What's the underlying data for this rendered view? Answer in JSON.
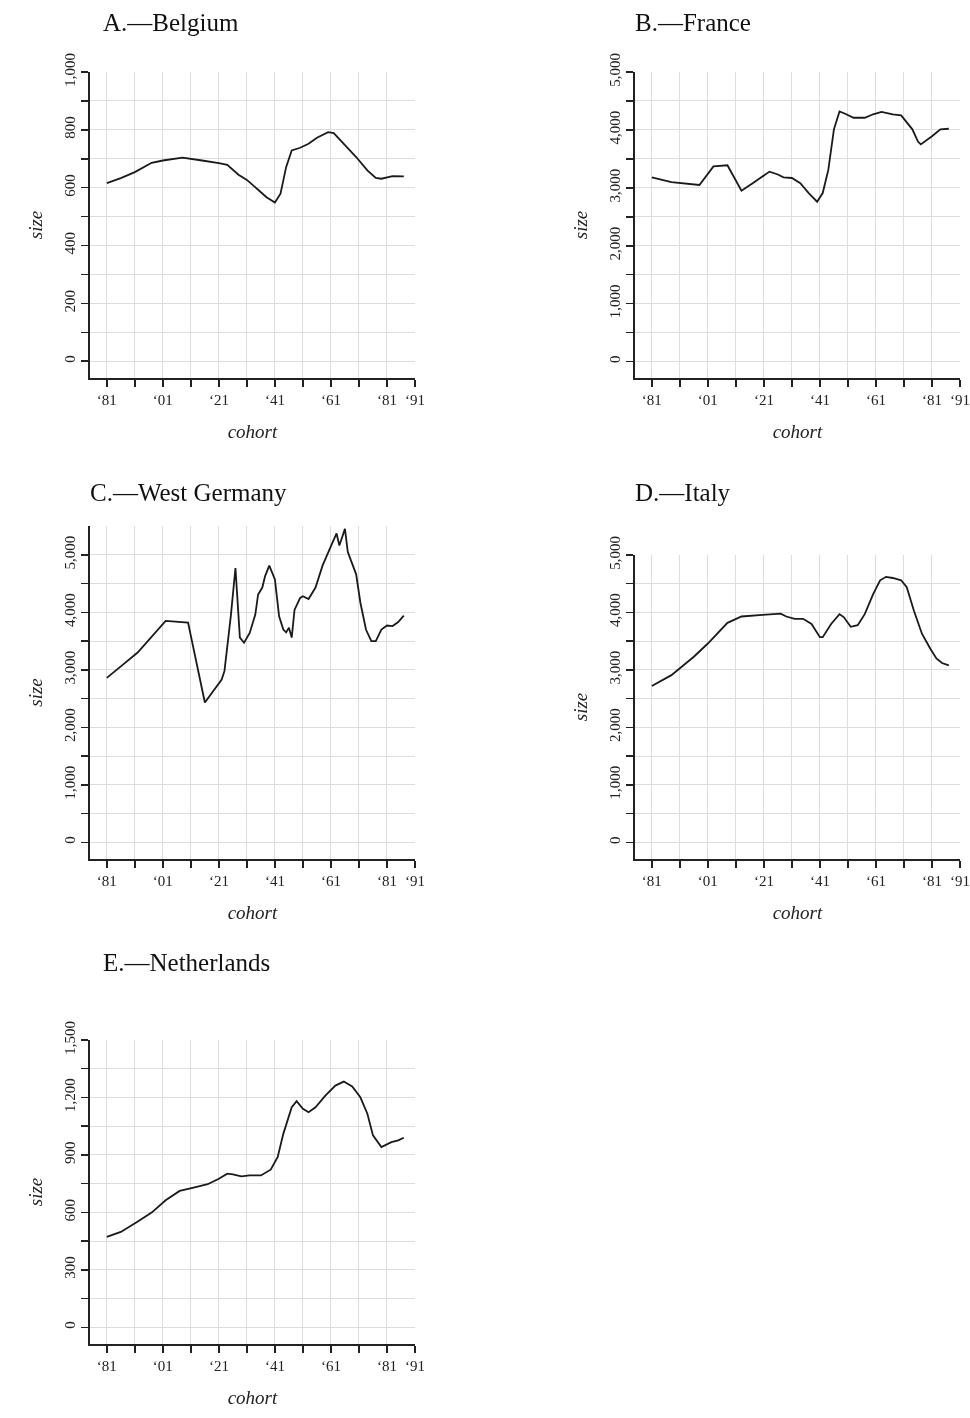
{
  "chart_data": [
    {
      "type": "line",
      "title": "A.—Belgium",
      "xlabel": "cohort",
      "ylabel": "size",
      "color": "#1a1a1a",
      "grid": true,
      "x": [
        "1881",
        "1886",
        "1891",
        "1897",
        "1901",
        "1908",
        "1915",
        "1921",
        "1924",
        "1928",
        "1931",
        "1935",
        "1938",
        "1941",
        "1943",
        "1945",
        "1947",
        "1950",
        "1953",
        "1956",
        "1960",
        "1962",
        "1966",
        "1970",
        "1974",
        "1977",
        "1979",
        "1983",
        "1987"
      ],
      "values": [
        616,
        633,
        654,
        686,
        694,
        704,
        694,
        685,
        679,
        645,
        627,
        593,
        567,
        549,
        579,
        671,
        729,
        738,
        752,
        773,
        792,
        789,
        747,
        706,
        660,
        634,
        631,
        640,
        639
      ],
      "xlim": [
        "1875",
        "1991"
      ],
      "ylim": [
        -58,
        1000
      ],
      "xticks": [
        {
          "value": "1881",
          "label": "‘81"
        },
        {
          "value": "1891",
          "label": null
        },
        {
          "value": "1901",
          "label": "‘01"
        },
        {
          "value": "1911",
          "label": null
        },
        {
          "value": "1921",
          "label": "‘21"
        },
        {
          "value": "1931",
          "label": null
        },
        {
          "value": "1941",
          "label": "‘41"
        },
        {
          "value": "1951",
          "label": null
        },
        {
          "value": "1961",
          "label": "‘61"
        },
        {
          "value": "1971",
          "label": null
        },
        {
          "value": "1981",
          "label": "‘81"
        },
        {
          "value": "1991",
          "label": "‘91"
        }
      ],
      "yticks": [
        0,
        {
          "value": 100,
          "label": null
        },
        200,
        {
          "value": 300,
          "label": null
        },
        400,
        {
          "value": 500,
          "label": null
        },
        600,
        {
          "value": 700,
          "label": null
        },
        800,
        {
          "value": 900,
          "label": null
        },
        {
          "value": 1000,
          "label": "1,000"
        }
      ]
    },
    {
      "type": "line",
      "title": "B.—France",
      "xlabel": "cohort",
      "ylabel": "size",
      "color": "#1a1a1a",
      "grid": true,
      "x": [
        "1881",
        "1888",
        "1898",
        "1903",
        "1908",
        "1913",
        "1917",
        "1923",
        "1926",
        "1928",
        "1931",
        "1934",
        "1937",
        "1940",
        "1942",
        "1944",
        "1946",
        "1948",
        "1950",
        "1953",
        "1957",
        "1960",
        "1963",
        "1967",
        "1970",
        "1974",
        "1976",
        "1977",
        "1981",
        "1984",
        "1987"
      ],
      "values": [
        3180,
        3100,
        3050,
        3370,
        3390,
        2950,
        3080,
        3280,
        3230,
        3180,
        3170,
        3080,
        2910,
        2760,
        2910,
        3310,
        4010,
        4320,
        4280,
        4210,
        4210,
        4270,
        4310,
        4270,
        4250,
        4010,
        3800,
        3750,
        3890,
        4010,
        4020
      ],
      "xlim": [
        "1875",
        "1991"
      ],
      "ylim": [
        -283,
        5000
      ],
      "xticks": [
        {
          "value": "1881",
          "label": "‘81"
        },
        {
          "value": "1891",
          "label": null
        },
        {
          "value": "1901",
          "label": "‘01"
        },
        {
          "value": "1911",
          "label": null
        },
        {
          "value": "1921",
          "label": "‘21"
        },
        {
          "value": "1931",
          "label": null
        },
        {
          "value": "1941",
          "label": "‘41"
        },
        {
          "value": "1951",
          "label": null
        },
        {
          "value": "1961",
          "label": "‘61"
        },
        {
          "value": "1971",
          "label": null
        },
        {
          "value": "1981",
          "label": "‘81"
        },
        {
          "value": "1991",
          "label": "‘91"
        }
      ],
      "yticks": [
        0,
        {
          "value": 500,
          "label": null
        },
        {
          "value": 1000,
          "label": "1,000"
        },
        {
          "value": 1500,
          "label": null
        },
        {
          "value": 2000,
          "label": "2,000"
        },
        {
          "value": 2500,
          "label": null
        },
        {
          "value": 3000,
          "label": "3,000"
        },
        {
          "value": 3500,
          "label": null
        },
        {
          "value": 4000,
          "label": "4,000"
        },
        {
          "value": 4500,
          "label": null
        },
        {
          "value": 5000,
          "label": "5,000"
        }
      ]
    },
    {
      "type": "line",
      "title": "C.—West Germany",
      "xlabel": "cohort",
      "ylabel": "size",
      "color": "#1a1a1a",
      "grid": true,
      "x": [
        "1881",
        "1886",
        "1892",
        "1902",
        "1910",
        "1916",
        "1922",
        "1923",
        "1925-04",
        "1926-12",
        "1928-07",
        "1930",
        "1932",
        "1934",
        "1935",
        "1936-07",
        "1937-07",
        "1939",
        "1941",
        "1942-07",
        "1944",
        "1945",
        "1946",
        "1947",
        "1948",
        "1950",
        "1951",
        "1953",
        "1955-07",
        "1958",
        "1961",
        "1963",
        "1964",
        "1966",
        "1967",
        "1968",
        "1970",
        "1971-07",
        "1973-07",
        "1975-06",
        "1977",
        "1979",
        "1981",
        "1983",
        "1985",
        "1987"
      ],
      "values": [
        2860,
        3060,
        3300,
        3850,
        3820,
        2430,
        2830,
        2980,
        3930,
        4770,
        3560,
        3470,
        3640,
        3960,
        4310,
        4430,
        4630,
        4810,
        4570,
        3930,
        3700,
        3650,
        3730,
        3560,
        4040,
        4250,
        4280,
        4230,
        4430,
        4810,
        5150,
        5370,
        5160,
        5450,
        5050,
        4920,
        4660,
        4170,
        3700,
        3500,
        3500,
        3700,
        3770,
        3760,
        3830,
        3940
      ],
      "xlim": [
        "1875",
        "1991"
      ],
      "ylim": [
        -290,
        5500
      ],
      "xticks": [
        {
          "value": "1881",
          "label": "‘81"
        },
        {
          "value": "1891",
          "label": null
        },
        {
          "value": "1901",
          "label": "‘01"
        },
        {
          "value": "1911",
          "label": null
        },
        {
          "value": "1921",
          "label": "‘21"
        },
        {
          "value": "1931",
          "label": null
        },
        {
          "value": "1941",
          "label": "‘41"
        },
        {
          "value": "1951",
          "label": null
        },
        {
          "value": "1961",
          "label": "‘61"
        },
        {
          "value": "1971",
          "label": null
        },
        {
          "value": "1981",
          "label": "‘81"
        },
        {
          "value": "1991",
          "label": "‘91"
        }
      ],
      "yticks": [
        0,
        {
          "value": 500,
          "label": null
        },
        {
          "value": 1000,
          "label": "1,000"
        },
        {
          "value": 1500,
          "label": null
        },
        {
          "value": 2000,
          "label": "2,000"
        },
        {
          "value": 2500,
          "label": null
        },
        {
          "value": 3000,
          "label": "3,000"
        },
        {
          "value": 3500,
          "label": null
        },
        {
          "value": 4000,
          "label": "4,000"
        },
        {
          "value": 4500,
          "label": null
        },
        {
          "value": 5000,
          "label": "5,000"
        }
      ]
    },
    {
      "type": "line",
      "title": "D.—Italy",
      "xlabel": "cohort",
      "ylabel": "size",
      "color": "#1a1a1a",
      "grid": true,
      "x": [
        "1881",
        "1888",
        "1896",
        "1901",
        "1908",
        "1913",
        "1920-07",
        "1927",
        "1929",
        "1932",
        "1935",
        "1938",
        "1941",
        "1942",
        "1945",
        "1948",
        "1949-07",
        "1952",
        "1954-07",
        "1957",
        "1960",
        "1962-07",
        "1964-08",
        "1967",
        "1970",
        "1972",
        "1974-07",
        "1977-06",
        "1980-06",
        "1982-08",
        "1984-08",
        "1987"
      ],
      "values": [
        2720,
        2910,
        3230,
        3460,
        3820,
        3930,
        3960,
        3980,
        3930,
        3890,
        3890,
        3800,
        3570,
        3570,
        3800,
        3970,
        3920,
        3750,
        3780,
        3970,
        4320,
        4560,
        4620,
        4600,
        4560,
        4440,
        4040,
        3630,
        3370,
        3200,
        3120,
        3080
      ],
      "xlim": [
        "1875",
        "1991"
      ],
      "ylim": [
        -289,
        5000
      ],
      "xticks": [
        {
          "value": "1881",
          "label": "‘81"
        },
        {
          "value": "1891",
          "label": null
        },
        {
          "value": "1901",
          "label": "‘01"
        },
        {
          "value": "1911",
          "label": null
        },
        {
          "value": "1921",
          "label": "‘21"
        },
        {
          "value": "1931",
          "label": null
        },
        {
          "value": "1941",
          "label": "‘41"
        },
        {
          "value": "1951",
          "label": null
        },
        {
          "value": "1961",
          "label": "‘61"
        },
        {
          "value": "1971",
          "label": null
        },
        {
          "value": "1981",
          "label": "‘81"
        },
        {
          "value": "1991",
          "label": "‘91"
        }
      ],
      "yticks": [
        0,
        {
          "value": 500,
          "label": null
        },
        {
          "value": 1000,
          "label": "1,000"
        },
        {
          "value": 1500,
          "label": null
        },
        {
          "value": 2000,
          "label": "2,000"
        },
        {
          "value": 2500,
          "label": null
        },
        {
          "value": 3000,
          "label": "3,000"
        },
        {
          "value": 3500,
          "label": null
        },
        {
          "value": 4000,
          "label": "4,000"
        },
        {
          "value": 4500,
          "label": null
        },
        {
          "value": 5000,
          "label": "5,000"
        }
      ]
    },
    {
      "type": "line",
      "title": "E.—Netherlands",
      "xlabel": "cohort",
      "ylabel": "size",
      "color": "#1a1a1a",
      "grid": true,
      "x": [
        "1881",
        "1886",
        "1891-07",
        "1897",
        "1902",
        "1907",
        "1912",
        "1917",
        "1921",
        "1924",
        "1926",
        "1929",
        "1932",
        "1936",
        "1939-07",
        "1942",
        "1944",
        "1947",
        "1948-10",
        "1951",
        "1953",
        "1955-07",
        "1959",
        "1962-08",
        "1965-08",
        "1968-08",
        "1971-07",
        "1974",
        "1976",
        "1979",
        "1982-08",
        "1985",
        "1987"
      ],
      "values": [
        472,
        498,
        547,
        599,
        663,
        712,
        729,
        747,
        776,
        802,
        799,
        788,
        793,
        793,
        823,
        889,
        1010,
        1149,
        1181,
        1141,
        1123,
        1149,
        1210,
        1262,
        1283,
        1257,
        1201,
        1115,
        1002,
        941,
        967,
        976,
        990
      ],
      "xlim": [
        "1875",
        "1991"
      ],
      "ylim": [
        -87,
        1500
      ],
      "xticks": [
        {
          "value": "1881",
          "label": "‘81"
        },
        {
          "value": "1891",
          "label": null
        },
        {
          "value": "1901",
          "label": "‘01"
        },
        {
          "value": "1911",
          "label": null
        },
        {
          "value": "1921",
          "label": "‘21"
        },
        {
          "value": "1931",
          "label": null
        },
        {
          "value": "1941",
          "label": "‘41"
        },
        {
          "value": "1951",
          "label": null
        },
        {
          "value": "1961",
          "label": "‘61"
        },
        {
          "value": "1971",
          "label": null
        },
        {
          "value": "1981",
          "label": "‘81"
        },
        {
          "value": "1991",
          "label": "‘91"
        }
      ],
      "yticks": [
        0,
        {
          "value": 150,
          "label": null
        },
        300,
        {
          "value": 450,
          "label": null
        },
        600,
        {
          "value": 750,
          "label": null
        },
        900,
        {
          "value": 1050,
          "label": null
        },
        {
          "value": 1200,
          "label": "1,200"
        },
        {
          "value": 1350,
          "label": null
        },
        {
          "value": 1500,
          "label": "1,500"
        }
      ]
    }
  ]
}
